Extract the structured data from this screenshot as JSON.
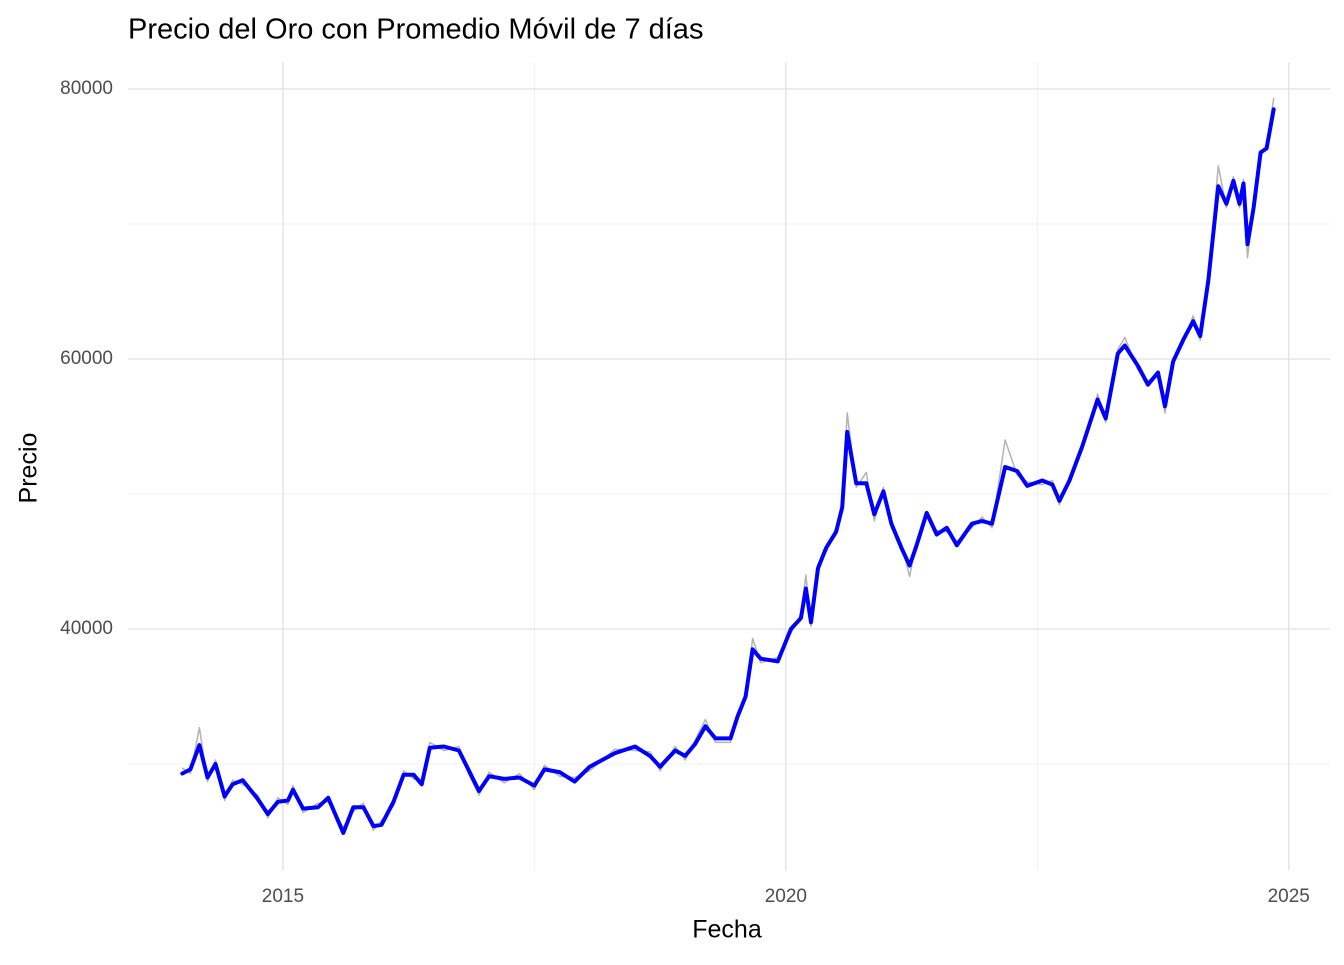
{
  "chart_data": {
    "type": "line",
    "title": "Precio del Oro con Promedio Móvil de 7 días",
    "x_label": "Fecha",
    "y_label": "Precio",
    "x": [
      2014.0,
      2014.08,
      2014.17,
      2014.25,
      2014.33,
      2014.42,
      2014.5,
      2014.6,
      2014.75,
      2014.85,
      2014.95,
      2015.05,
      2015.1,
      2015.2,
      2015.35,
      2015.45,
      2015.6,
      2015.7,
      2015.8,
      2015.9,
      2015.98,
      2016.1,
      2016.2,
      2016.3,
      2016.38,
      2016.46,
      2016.6,
      2016.75,
      2016.85,
      2016.95,
      2017.05,
      2017.2,
      2017.35,
      2017.5,
      2017.6,
      2017.75,
      2017.9,
      2018.05,
      2018.3,
      2018.5,
      2018.65,
      2018.75,
      2018.9,
      2019.0,
      2019.1,
      2019.2,
      2019.3,
      2019.45,
      2019.52,
      2019.6,
      2019.67,
      2019.75,
      2019.92,
      2020.05,
      2020.15,
      2020.2,
      2020.25,
      2020.32,
      2020.4,
      2020.5,
      2020.56,
      2020.61,
      2020.7,
      2020.8,
      2020.88,
      2020.97,
      2021.05,
      2021.15,
      2021.23,
      2021.3,
      2021.4,
      2021.5,
      2021.6,
      2021.7,
      2021.85,
      2021.95,
      2022.05,
      2022.18,
      2022.3,
      2022.4,
      2022.55,
      2022.65,
      2022.72,
      2022.82,
      2022.95,
      2023.1,
      2023.18,
      2023.3,
      2023.37,
      2023.5,
      2023.6,
      2023.7,
      2023.77,
      2023.85,
      2023.95,
      2024.05,
      2024.12,
      2024.2,
      2024.3,
      2024.38,
      2024.45,
      2024.51,
      2024.55,
      2024.59,
      2024.65,
      2024.72,
      2024.78,
      2024.85
    ],
    "series": [
      {
        "color": "#b3b3b3",
        "width": 1.5,
        "values": [
          29700,
          29300,
          32700,
          28700,
          30300,
          27300,
          28800,
          28500,
          27700,
          26000,
          27500,
          27000,
          28400,
          26400,
          27100,
          27200,
          25300,
          26500,
          27100,
          25100,
          25800,
          26900,
          29500,
          28900,
          28800,
          31600,
          31000,
          31300,
          29200,
          27700,
          29400,
          28600,
          29300,
          28100,
          29900,
          29100,
          29000,
          29500,
          31100,
          31000,
          30900,
          29500,
          31300,
          30300,
          31800,
          33300,
          31600,
          31600,
          33800,
          34700,
          39300,
          37500,
          37900,
          39700,
          41100,
          44000,
          40200,
          44800,
          45700,
          47500,
          48700,
          56000,
          50500,
          51600,
          48000,
          50500,
          47500,
          46300,
          43900,
          46500,
          48300,
          47300,
          47200,
          46500,
          47500,
          48300,
          47500,
          54000,
          51400,
          50900,
          50700,
          51000,
          49200,
          51300,
          53300,
          57400,
          55300,
          60700,
          61600,
          59200,
          58400,
          58700,
          56000,
          60100,
          61100,
          63200,
          61400,
          66100,
          74300,
          71200,
          73500,
          71200,
          73300,
          67500,
          71500,
          75000,
          75900,
          79300
        ]
      },
      {
        "color": "#0000ff",
        "width": 4,
        "values": [
          29300,
          29600,
          31400,
          29000,
          30000,
          27600,
          28500,
          28800,
          27400,
          26300,
          27200,
          27300,
          28100,
          26700,
          26800,
          27500,
          24900,
          26800,
          26800,
          25400,
          25500,
          27200,
          29200,
          29200,
          28500,
          31200,
          31300,
          31000,
          29500,
          28000,
          29100,
          28900,
          29000,
          28400,
          29600,
          29400,
          28700,
          29800,
          30800,
          31300,
          30600,
          29800,
          31000,
          30600,
          31500,
          32800,
          31900,
          31900,
          33500,
          35000,
          38500,
          37800,
          37600,
          40000,
          40800,
          43000,
          40500,
          44500,
          46000,
          47200,
          49000,
          54600,
          50800,
          50800,
          48500,
          50200,
          47800,
          46000,
          44700,
          46200,
          48600,
          47000,
          47500,
          46200,
          47800,
          48000,
          47800,
          52000,
          51700,
          50600,
          51000,
          50700,
          49500,
          51000,
          53600,
          57000,
          55600,
          60400,
          61000,
          59500,
          58100,
          59000,
          56500,
          59800,
          61400,
          62800,
          61700,
          65800,
          72800,
          71500,
          73200,
          71500,
          73000,
          68500,
          71200,
          75300,
          75600,
          78500
        ]
      }
    ],
    "xlim": [
      2013.46,
      2025.41
    ],
    "ylim": [
      22150,
      82000
    ],
    "xticks": [
      2015,
      2020,
      2025
    ],
    "yticks": [
      40000,
      60000,
      80000
    ],
    "minor_xticks": [
      2017.5,
      2022.5
    ],
    "minor_yticks": [
      30000,
      50000,
      70000
    ],
    "grid": true
  }
}
